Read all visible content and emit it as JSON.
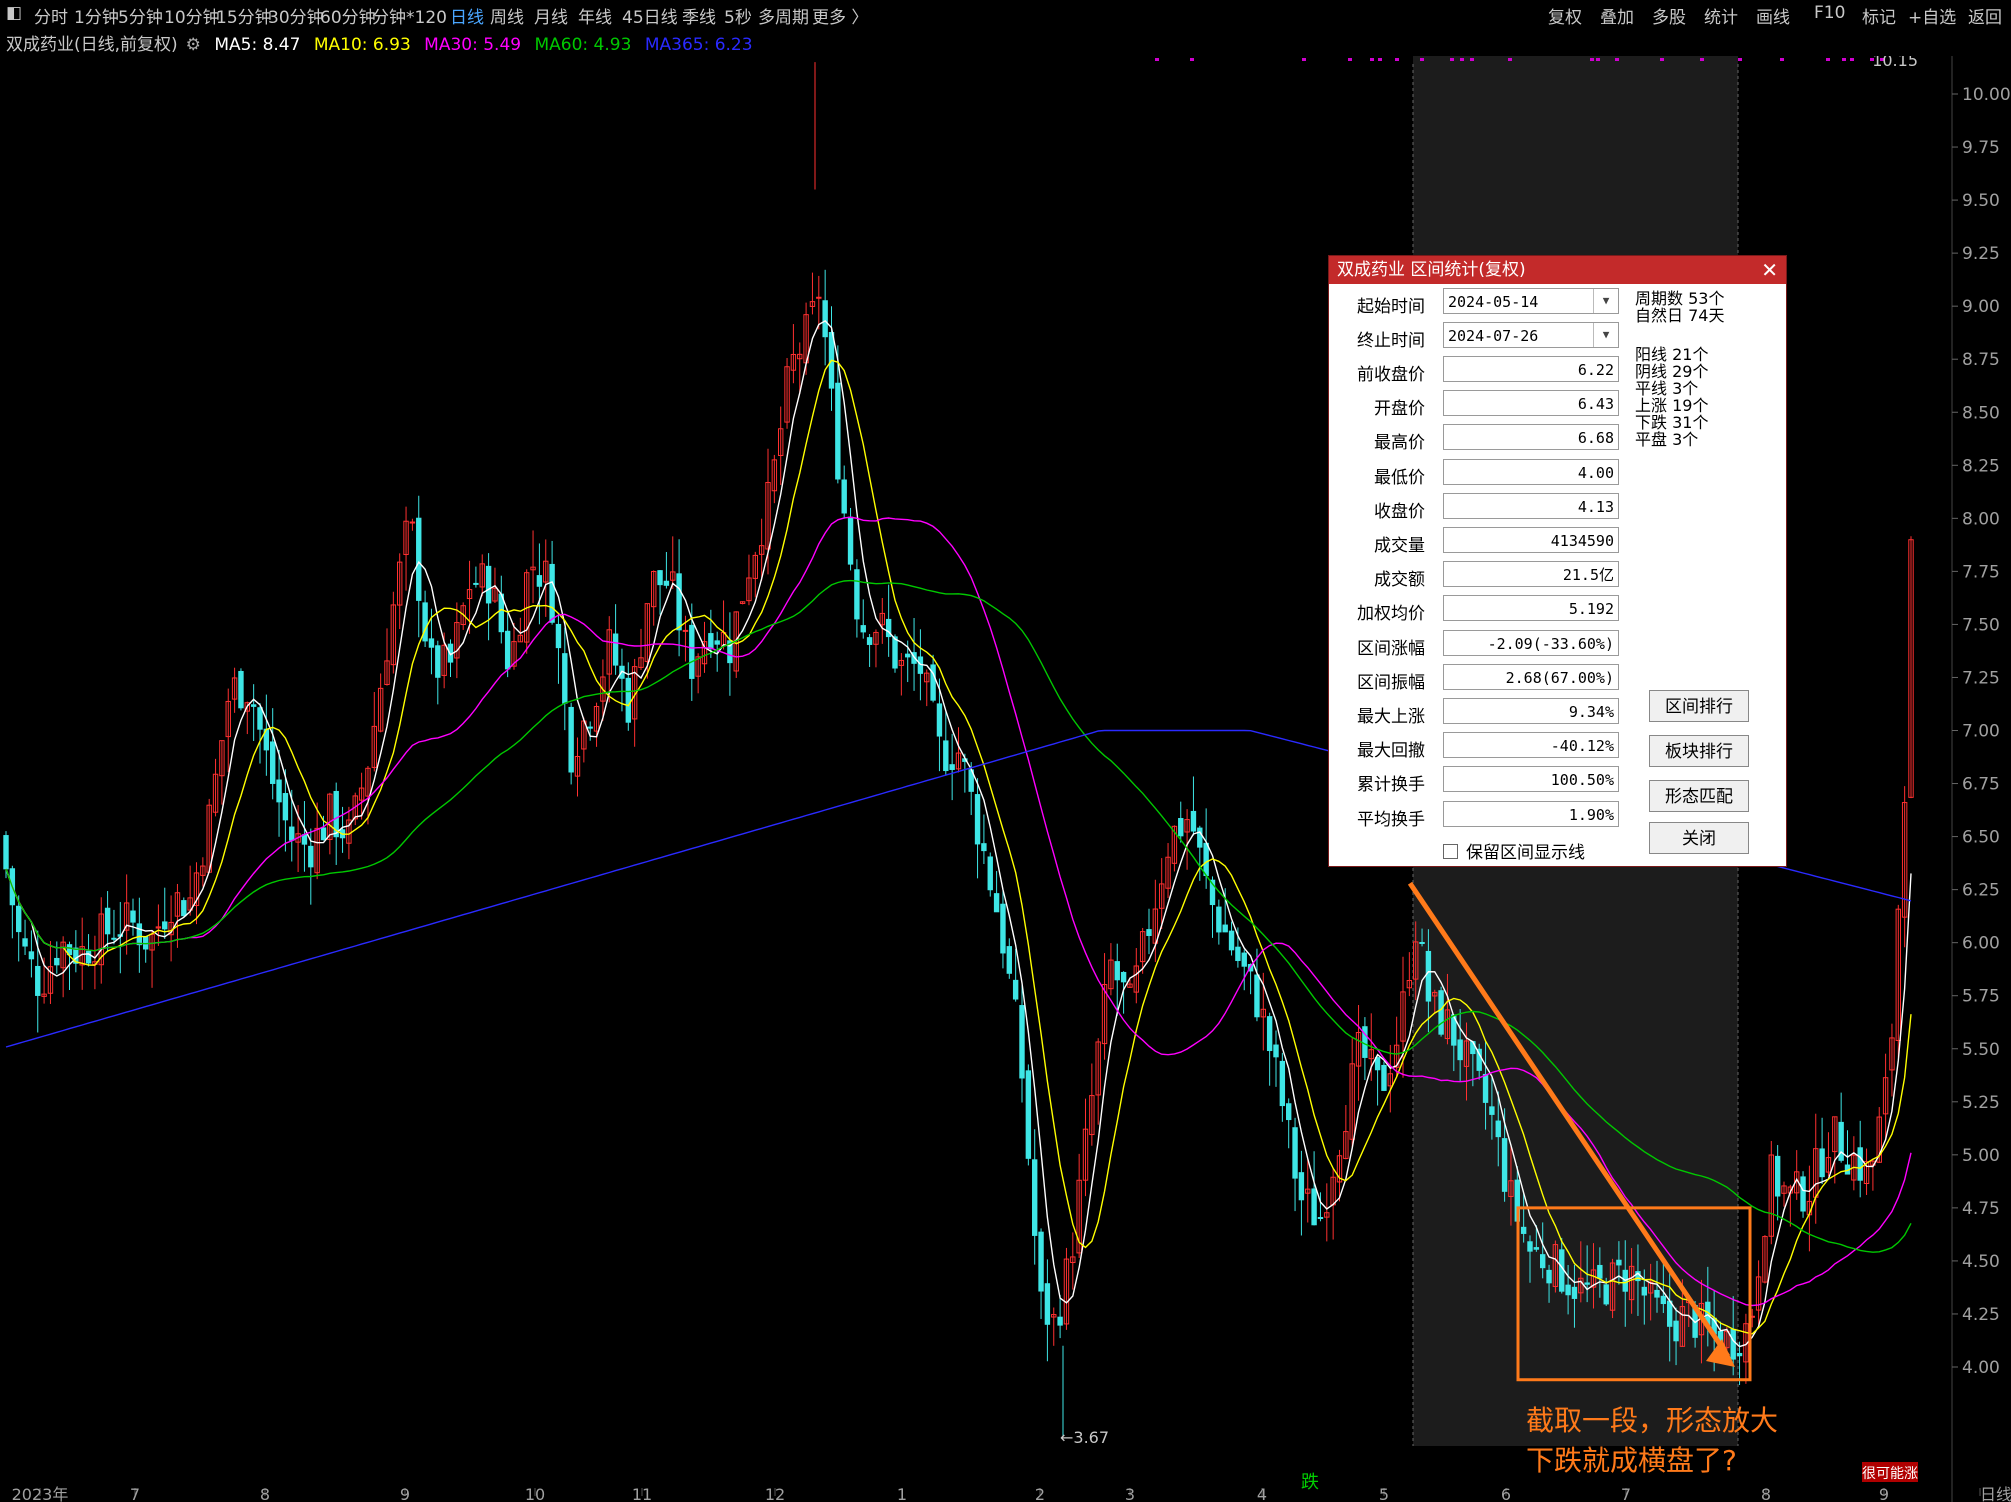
{
  "toolbar": {
    "left_items": [
      "分时",
      "1分钟",
      "5分钟",
      "10分钟",
      "15分钟",
      "30分钟",
      "60分钟",
      "分钟*120",
      "日线",
      "周线",
      "月线",
      "年线",
      "45日线",
      "季线",
      "5秒",
      "多周期",
      "更多 〉"
    ],
    "active_item": "日线",
    "right_items": [
      "复权",
      "叠加",
      "多股",
      "统计",
      "画线",
      "F10",
      "标记",
      "+自选",
      "返回"
    ]
  },
  "infobar": {
    "stock_title": "双成药业(日线,前复权)",
    "ma": [
      {
        "label": "MA5: 8.47",
        "color": "#ffffff"
      },
      {
        "label": "MA10: 6.93",
        "color": "#ffff00"
      },
      {
        "label": "MA30: 5.49",
        "color": "#ff00ff"
      },
      {
        "label": "MA60: 4.93",
        "color": "#00c800"
      },
      {
        "label": "MA365: 6.23",
        "color": "#2a2aff"
      }
    ]
  },
  "chart_data": {
    "type": "candlestick",
    "y_ticks": [
      "10.00",
      "9.75",
      "9.50",
      "9.25",
      "9.00",
      "8.75",
      "8.50",
      "8.25",
      "8.00",
      "7.75",
      "7.50",
      "7.25",
      "7.00",
      "6.75",
      "6.50",
      "6.25",
      "6.00",
      "5.75",
      "5.50",
      "5.25",
      "5.00",
      "4.75",
      "4.50",
      "4.25",
      "4.00"
    ],
    "ylim": [
      3.67,
      10.15
    ],
    "x_labels": [
      "2023年",
      "7",
      "8",
      "9",
      "10",
      "11",
      "12",
      "1",
      "2",
      "3",
      "4",
      "5",
      "6",
      "7",
      "8",
      "9",
      "日线"
    ],
    "x_months": [
      "2023-06",
      "2023-07",
      "2023-08",
      "2023-09",
      "2023-10",
      "2023-11",
      "2023-12",
      "2024-01",
      "2024-02",
      "2024-03",
      "2024-04",
      "2024-05",
      "2024-06",
      "2024-07",
      "2024-08",
      "2024-09"
    ],
    "max_label": "10.15",
    "min_label": "←3.67",
    "series": [
      {
        "name": "MA5",
        "color": "#ffffff"
      },
      {
        "name": "MA10",
        "color": "#ffff00"
      },
      {
        "name": "MA30",
        "color": "#ff00ff"
      },
      {
        "name": "MA60",
        "color": "#00c800"
      },
      {
        "name": "MA365",
        "color": "#2a2aff"
      }
    ],
    "up_color": "#ff3030",
    "down_color": "#3ee6e6",
    "selected_range": [
      "2024-05-14",
      "2024-07-26"
    ],
    "annotation": [
      "截取一段，形态放大",
      "下跌就成横盘了?"
    ],
    "bottom_tags": [
      "跌",
      "很可能涨"
    ]
  },
  "dialog": {
    "title": "双成药业 区间统计(复权)",
    "start_label": "起始时间",
    "start_value": "2024-05-14",
    "end_label": "终止时间",
    "end_value": "2024-07-26",
    "fields": [
      {
        "label": "前收盘价",
        "value": "6.22"
      },
      {
        "label": "开盘价",
        "value": "6.43"
      },
      {
        "label": "最高价",
        "value": "6.68"
      },
      {
        "label": "最低价",
        "value": "4.00"
      },
      {
        "label": "收盘价",
        "value": "4.13"
      },
      {
        "label": "成交量",
        "value": "4134590"
      },
      {
        "label": "成交额",
        "value": "21.5亿"
      },
      {
        "label": "加权均价",
        "value": "5.192"
      },
      {
        "label": "区间涨幅",
        "value": "-2.09(-33.60%)"
      },
      {
        "label": "区间振幅",
        "value": "2.68(67.00%)"
      },
      {
        "label": "最大上涨",
        "value": "9.34%"
      },
      {
        "label": "最大回撤",
        "value": "-40.12%"
      },
      {
        "label": "累计换手",
        "value": "100.50%"
      },
      {
        "label": "平均换手",
        "value": "1.90%"
      }
    ],
    "stats_top": [
      "周期数 53个",
      "自然日 74天"
    ],
    "stats": [
      "阳线 21个",
      "阴线 29个",
      "平线 3个",
      "上涨 19个",
      "下跌 31个",
      "平盘 3个"
    ],
    "buttons": [
      "区间排行",
      "板块排行",
      "形态匹配",
      "关闭"
    ],
    "checkbox_label": "保留区间显示线"
  }
}
